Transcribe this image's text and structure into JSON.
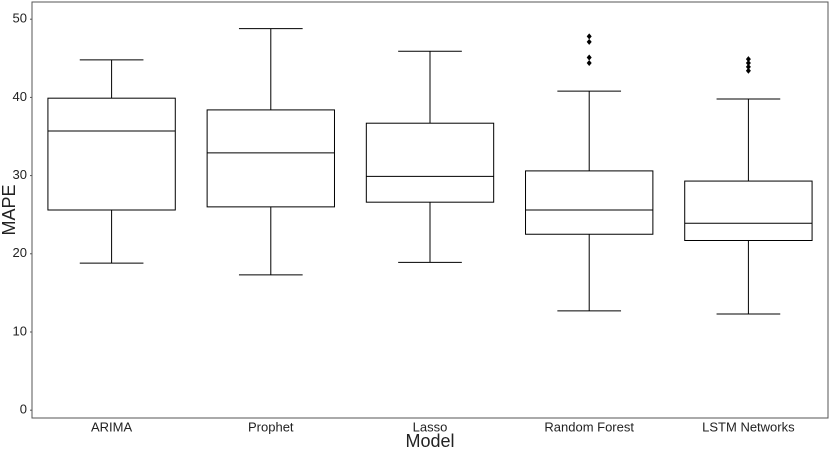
{
  "chart_data": {
    "type": "box",
    "x_label": "Model",
    "y_label": "MAPE",
    "categories": [
      "ARIMA",
      "Prophet",
      "Lasso",
      "Random Forest",
      "LSTM Networks"
    ],
    "boxes": [
      {
        "whislo": 18.8,
        "q1": 25.6,
        "med": 35.7,
        "q3": 39.9,
        "whishi": 44.8,
        "fliers": []
      },
      {
        "whislo": 17.3,
        "q1": 26.0,
        "med": 32.9,
        "q3": 38.4,
        "whishi": 48.8,
        "fliers": []
      },
      {
        "whislo": 18.9,
        "q1": 26.6,
        "med": 29.9,
        "q3": 36.7,
        "whishi": 45.9,
        "fliers": []
      },
      {
        "whislo": 12.7,
        "q1": 22.5,
        "med": 25.6,
        "q3": 30.6,
        "whishi": 40.8,
        "fliers": [
          47.8,
          47.1,
          45.1,
          44.4
        ]
      },
      {
        "whislo": 12.3,
        "q1": 21.7,
        "med": 23.9,
        "q3": 29.3,
        "whishi": 39.8,
        "fliers": [
          44.9,
          44.4,
          43.9,
          43.4
        ]
      }
    ],
    "color": "#000000",
    "ylim": [
      -1,
      52.2
    ],
    "yticks": [
      0,
      10,
      20,
      30,
      40,
      50
    ],
    "grid": false
  }
}
